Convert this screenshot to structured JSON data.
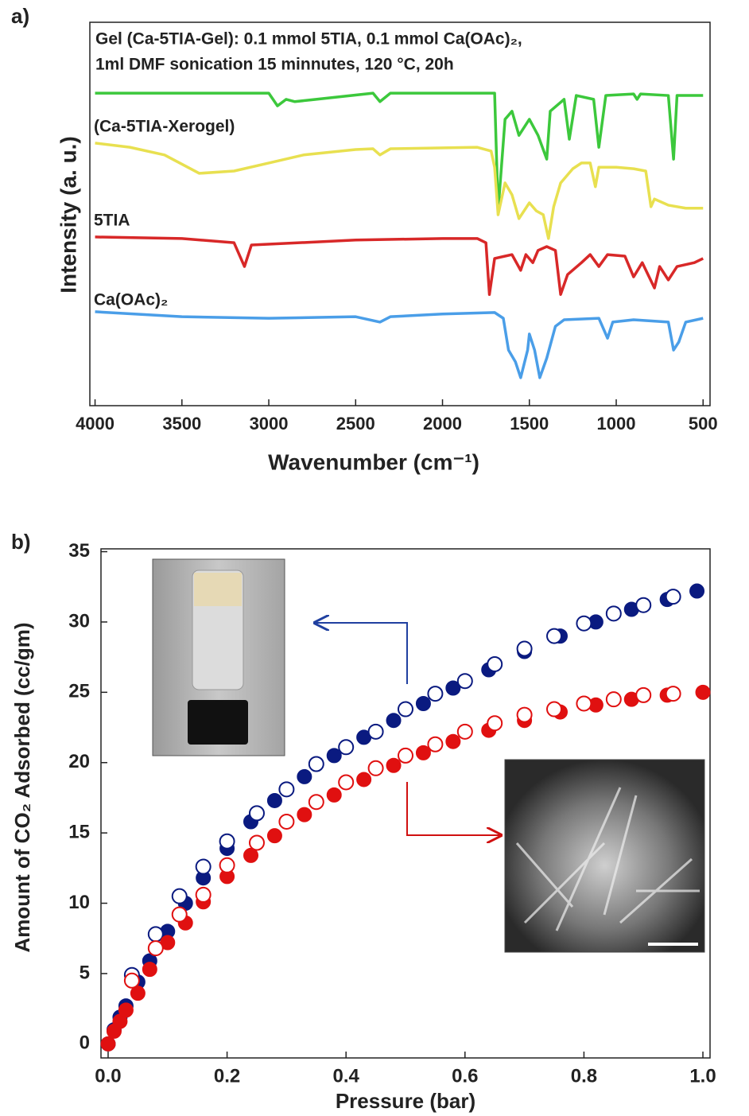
{
  "chart_data": [
    {
      "type": "line",
      "panel_label": "a)",
      "x_label": "Wavenumber (cm⁻¹)",
      "y_label": "Intensity (a. u.)",
      "annotations": [
        "Gel (Ca-5TIA-Gel): 0.1 mmol 5TIA, 0.1 mmol Ca(OAc)₂,",
        "1ml DMF sonication 15 minnutes, 120 °C, 20h"
      ],
      "xlim": [
        4030,
        460
      ],
      "xticks": [
        4000,
        3500,
        3000,
        2500,
        2000,
        1500,
        1000,
        500
      ],
      "ylim": [
        0,
        100
      ],
      "series": [
        {
          "color": "#3cc83c",
          "x": [
            4000,
            3000,
            2950,
            2900,
            2850,
            2400,
            2360,
            2300,
            1700,
            1680,
            1640,
            1600,
            1560,
            1500,
            1450,
            1400,
            1380,
            1300,
            1270,
            1230,
            1130,
            1100,
            1060,
            900,
            880,
            860,
            700,
            670,
            650,
            500
          ],
          "values": [
            81.5,
            81.5,
            78.2,
            79.9,
            79.3,
            81.5,
            79.3,
            81.5,
            81.5,
            50.8,
            74.7,
            76.8,
            70.5,
            74.7,
            70.5,
            64.3,
            76.8,
            79.9,
            69.5,
            80.9,
            79.9,
            67.4,
            80.9,
            81.3,
            79.9,
            81.3,
            80.9,
            64.3,
            80.9,
            80.9
          ]
        },
        {
          "name": "(Ca-5TIA-Xerogel)",
          "color": "#e8e050",
          "x": [
            4000,
            3800,
            3600,
            3400,
            3200,
            3000,
            2800,
            2500,
            2400,
            2360,
            2300,
            1800,
            1720,
            1700,
            1680,
            1640,
            1600,
            1560,
            1500,
            1460,
            1420,
            1390,
            1360,
            1320,
            1250,
            1200,
            1150,
            1120,
            1100,
            1000,
            900,
            830,
            800,
            780,
            700,
            600,
            500
          ],
          "values": [
            68.5,
            67.4,
            65.4,
            60.6,
            61.2,
            63.3,
            65.4,
            66.8,
            67.0,
            65.4,
            67.0,
            67.4,
            66.4,
            62.2,
            49.8,
            58.1,
            55.0,
            48.8,
            52.9,
            50.8,
            49.8,
            43.6,
            51.9,
            58.1,
            61.8,
            63.3,
            63.3,
            57.1,
            62.2,
            62.2,
            61.8,
            61.2,
            51.9,
            53.9,
            52.3,
            51.5,
            51.5
          ]
        },
        {
          "name": "5TIA",
          "color": "#d82828",
          "x": [
            4000,
            3500,
            3200,
            3140,
            3100,
            2500,
            2000,
            1800,
            1750,
            1730,
            1700,
            1600,
            1550,
            1520,
            1480,
            1450,
            1400,
            1350,
            1320,
            1280,
            1200,
            1150,
            1100,
            1050,
            950,
            900,
            850,
            780,
            750,
            700,
            650,
            550,
            500
          ],
          "values": [
            44.0,
            43.6,
            42.5,
            36.3,
            41.9,
            43.2,
            43.6,
            43.6,
            42.5,
            29.0,
            38.4,
            39.4,
            35.3,
            39.4,
            37.3,
            40.5,
            41.5,
            40.5,
            29.0,
            34.2,
            37.3,
            39.4,
            36.3,
            39.4,
            39.0,
            33.6,
            37.3,
            30.7,
            36.3,
            32.8,
            36.3,
            37.3,
            38.4
          ]
        },
        {
          "name": "Ca(OAc)₂",
          "color": "#4a9ee8",
          "x": [
            4000,
            3500,
            3000,
            2500,
            2360,
            2300,
            2000,
            1700,
            1650,
            1620,
            1580,
            1550,
            1510,
            1500,
            1470,
            1440,
            1400,
            1350,
            1300,
            1100,
            1050,
            1020,
            900,
            700,
            670,
            640,
            600,
            500
          ],
          "values": [
            24.5,
            23.2,
            22.8,
            23.2,
            21.8,
            23.2,
            23.9,
            24.3,
            22.8,
            14.5,
            11.4,
            7.3,
            14.5,
            18.7,
            14.5,
            7.3,
            12.4,
            20.7,
            22.4,
            22.8,
            17.6,
            21.8,
            22.4,
            21.8,
            14.5,
            16.6,
            21.8,
            22.8
          ]
        }
      ]
    },
    {
      "type": "scatter",
      "panel_label": "b)",
      "x_label": "Pressure (bar)",
      "y_label": "Amount of CO₂ Adsorbed (cc/gm)",
      "xlim": [
        -0.012,
        1.012
      ],
      "ylim": [
        -1,
        35.2
      ],
      "xticks": [
        {
          "value": 0,
          "label": "0.0"
        },
        {
          "value": 0.2,
          "label": "0.2"
        },
        {
          "value": 0.4,
          "label": "0.4"
        },
        {
          "value": 0.6,
          "label": "0.6"
        },
        {
          "value": 0.8,
          "label": "0.8"
        },
        {
          "value": 1,
          "label": "1.0"
        }
      ],
      "yticks": [
        0,
        5,
        10,
        15,
        20,
        25,
        30,
        35
      ],
      "series": [
        {
          "color": "#0a1a80",
          "marker": "filled",
          "x": [
            0,
            0.01,
            0.02,
            0.03,
            0.05,
            0.07,
            0.1,
            0.13,
            0.16,
            0.2,
            0.24,
            0.28,
            0.33,
            0.38,
            0.43,
            0.48,
            0.53,
            0.58,
            0.64,
            0.7,
            0.76,
            0.82,
            0.88,
            0.94,
            0.99
          ],
          "values": [
            0,
            1.0,
            1.9,
            2.7,
            4.4,
            5.9,
            8.0,
            10,
            11.8,
            13.9,
            15.8,
            17.3,
            19.0,
            20.5,
            21.8,
            23.0,
            24.2,
            25.3,
            26.6,
            27.9,
            29.0,
            30.0,
            30.9,
            31.6,
            32.2
          ]
        },
        {
          "color": "#0a1a80",
          "marker": "open",
          "x": [
            0.04,
            0.08,
            0.12,
            0.16,
            0.2,
            0.25,
            0.3,
            0.35,
            0.4,
            0.45,
            0.5,
            0.55,
            0.6,
            0.65,
            0.7,
            0.75,
            0.8,
            0.85,
            0.9,
            0.95
          ],
          "values": [
            4.9,
            7.8,
            10.5,
            12.6,
            14.4,
            16.4,
            18.1,
            19.9,
            21.1,
            22.2,
            23.8,
            24.9,
            25.8,
            27.0,
            28.1,
            29.0,
            29.9,
            30.6,
            31.2,
            31.8
          ]
        },
        {
          "color": "#e01010",
          "marker": "filled",
          "x": [
            0,
            0.01,
            0.02,
            0.03,
            0.05,
            0.07,
            0.1,
            0.13,
            0.16,
            0.2,
            0.24,
            0.28,
            0.33,
            0.38,
            0.43,
            0.48,
            0.53,
            0.58,
            0.64,
            0.7,
            0.76,
            0.82,
            0.88,
            0.94,
            1.0
          ],
          "values": [
            0,
            0.9,
            1.6,
            2.4,
            3.6,
            5.3,
            7.2,
            8.6,
            10.1,
            11.9,
            13.4,
            14.8,
            16.3,
            17.7,
            18.8,
            19.8,
            20.7,
            21.5,
            22.3,
            23.0,
            23.6,
            24.1,
            24.5,
            24.8,
            25.0
          ]
        },
        {
          "color": "#e01010",
          "marker": "open",
          "x": [
            0.04,
            0.08,
            0.12,
            0.16,
            0.2,
            0.25,
            0.3,
            0.35,
            0.4,
            0.45,
            0.5,
            0.55,
            0.6,
            0.65,
            0.7,
            0.75,
            0.8,
            0.85,
            0.9,
            0.95
          ],
          "values": [
            4.5,
            6.8,
            9.2,
            10.6,
            12.7,
            14.3,
            15.8,
            17.2,
            18.6,
            19.6,
            20.5,
            21.3,
            22.2,
            22.8,
            23.4,
            23.8,
            24.2,
            24.5,
            24.8,
            24.9
          ]
        }
      ]
    }
  ]
}
